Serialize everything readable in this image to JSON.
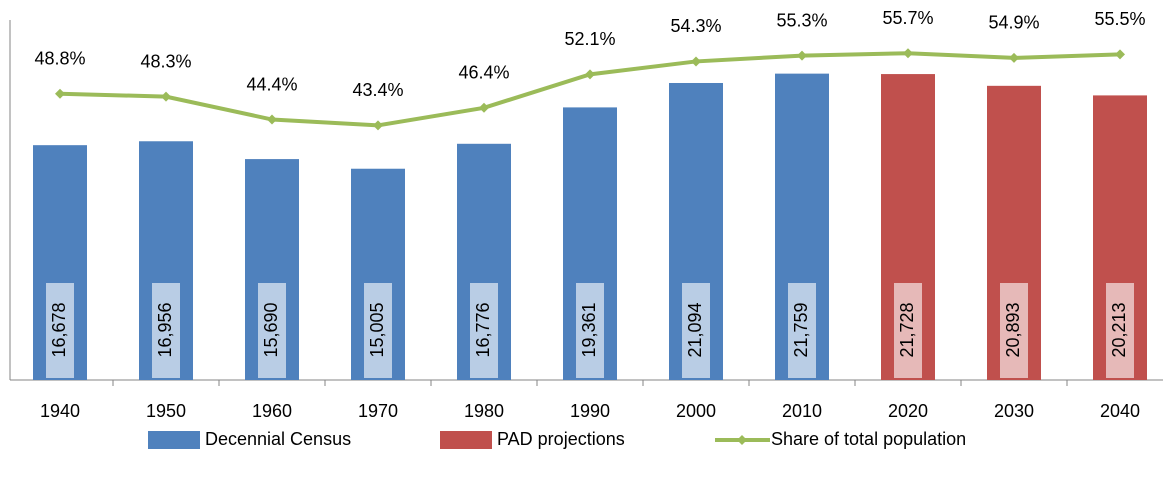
{
  "chart_data": {
    "type": "bar-line",
    "categories": [
      "1940",
      "1950",
      "1960",
      "1970",
      "1980",
      "1990",
      "2000",
      "2010",
      "2020",
      "2030",
      "2040"
    ],
    "ylim": [
      0,
      25000
    ],
    "y2lim": [
      0,
      60
    ],
    "legend": "bottom",
    "series": [
      {
        "name": "Decennial Census",
        "type": "bar",
        "color": "#4f81bd",
        "label_box_color": "#b9cde5",
        "values": [
          16678,
          16956,
          15690,
          15005,
          16776,
          19361,
          21094,
          21759,
          null,
          null,
          null
        ],
        "value_labels": [
          "16,678",
          "16,956",
          "15,690",
          "15,005",
          "16,776",
          "19,361",
          "21,094",
          "21,759",
          null,
          null,
          null
        ]
      },
      {
        "name": "PAD projections",
        "type": "bar",
        "color": "#c0504d",
        "label_box_color": "#e6b9b8",
        "values": [
          null,
          null,
          null,
          null,
          null,
          null,
          null,
          null,
          21728,
          20893,
          20213
        ],
        "value_labels": [
          null,
          null,
          null,
          null,
          null,
          null,
          null,
          null,
          "21,728",
          "20,893",
          "20,213"
        ]
      },
      {
        "name": "Share of total population",
        "type": "line",
        "axis": "y2",
        "color": "#9bbb59",
        "values": [
          48.8,
          48.3,
          44.4,
          43.4,
          46.4,
          52.1,
          54.3,
          55.3,
          55.7,
          54.9,
          55.5
        ],
        "value_labels": [
          "48.8%",
          "48.3%",
          "44.4%",
          "43.4%",
          "46.4%",
          "52.1%",
          "54.3%",
          "55.3%",
          "55.7%",
          "54.9%",
          "55.5%"
        ]
      }
    ]
  }
}
